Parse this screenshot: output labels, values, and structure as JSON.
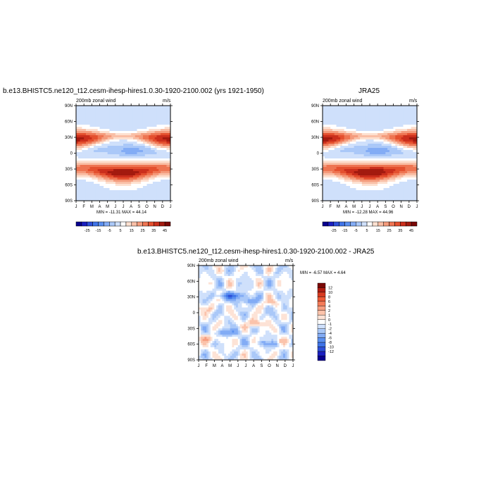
{
  "chart_data": [
    {
      "type": "heatmap",
      "title": "b.e13.BHISTC5.ne120_t12.cesm-ihesp-hires1.0.30-1920-2100.002 (yrs 1921-1950)",
      "subtitle_left": "200mb zonal wind",
      "subtitle_right": "m/s",
      "x_ticks": [
        "J",
        "F",
        "M",
        "A",
        "M",
        "J",
        "J",
        "A",
        "S",
        "O",
        "N",
        "D",
        "J"
      ],
      "y_ticks": [
        "90N",
        "60N",
        "30N",
        "0",
        "30S",
        "60S",
        "90S"
      ],
      "ylim": [
        -90,
        90
      ],
      "minmax": "MIN = -11.31 MAX = 44.14",
      "min": -11.31,
      "max": 44.14,
      "colorbar": {
        "orientation": "horizontal",
        "labels": [
          "-25",
          "-15",
          "-5",
          "5",
          "15",
          "25",
          "35",
          "45"
        ],
        "levels": [
          -30,
          -25,
          -20,
          -15,
          -10,
          -5,
          0,
          5,
          10,
          15,
          20,
          25,
          30,
          35,
          40,
          45
        ],
        "colors": [
          "#08008f",
          "#1a1fc0",
          "#2d4fd8",
          "#3f74e8",
          "#5a8ff0",
          "#83acf5",
          "#aac8f8",
          "#cfe0fb",
          "#ffffff",
          "#fde0d0",
          "#f9bfa6",
          "#f49b7c",
          "#ee7552",
          "#e4502f",
          "#cb2f1c",
          "#a31a0f",
          "#7a0806"
        ]
      }
    },
    {
      "type": "heatmap",
      "title": "JRA25",
      "subtitle_left": "200mb zonal wind",
      "subtitle_right": "m/s",
      "x_ticks": [
        "J",
        "F",
        "M",
        "A",
        "M",
        "J",
        "J",
        "A",
        "S",
        "O",
        "N",
        "D",
        "J"
      ],
      "y_ticks": [
        "90N",
        "60N",
        "30N",
        "0",
        "30S",
        "60S",
        "90S"
      ],
      "ylim": [
        -90,
        90
      ],
      "minmax": "MIN = -12.28 MAX = 44.96",
      "min": -12.28,
      "max": 44.96,
      "colorbar": {
        "orientation": "horizontal",
        "labels": [
          "-25",
          "-15",
          "-5",
          "5",
          "15",
          "25",
          "35",
          "45"
        ],
        "levels": [
          -30,
          -25,
          -20,
          -15,
          -10,
          -5,
          0,
          5,
          10,
          15,
          20,
          25,
          30,
          35,
          40,
          45
        ],
        "colors": [
          "#08008f",
          "#1a1fc0",
          "#2d4fd8",
          "#3f74e8",
          "#5a8ff0",
          "#83acf5",
          "#aac8f8",
          "#cfe0fb",
          "#ffffff",
          "#fde0d0",
          "#f9bfa6",
          "#f49b7c",
          "#ee7552",
          "#e4502f",
          "#cb2f1c",
          "#a31a0f",
          "#7a0806"
        ]
      }
    },
    {
      "type": "heatmap",
      "title": "b.e13.BHISTC5.ne120_t12.cesm-ihesp-hires1.0.30-1920-2100.002 - JRA25",
      "subtitle_left": "200mb zonal wind",
      "subtitle_right": "m/s",
      "x_ticks": [
        "J",
        "F",
        "M",
        "A",
        "M",
        "J",
        "J",
        "A",
        "S",
        "O",
        "N",
        "D",
        "J"
      ],
      "y_ticks": [
        "90N",
        "60N",
        "30N",
        "0",
        "30S",
        "60S",
        "90S"
      ],
      "ylim": [
        -90,
        90
      ],
      "minmax": "MIN = -6.57 MAX =  4.64",
      "min": -6.57,
      "max": 4.64,
      "colorbar": {
        "orientation": "vertical",
        "labels": [
          "12",
          "10",
          "8",
          "6",
          "4",
          "2",
          "1",
          "0",
          "-1",
          "-2",
          "-4",
          "-6",
          "-8",
          "-10",
          "-12"
        ],
        "colors": [
          "#7a0806",
          "#b01d12",
          "#d73a20",
          "#ef5a36",
          "#f47b58",
          "#f79e80",
          "#fbc3ab",
          "#fde3d6",
          "#ffffff",
          "#cfe0fb",
          "#aac8f8",
          "#83acf5",
          "#5a8ff0",
          "#3f74e8",
          "#2d4fd8",
          "#1a1fc0",
          "#08008f"
        ]
      }
    }
  ]
}
